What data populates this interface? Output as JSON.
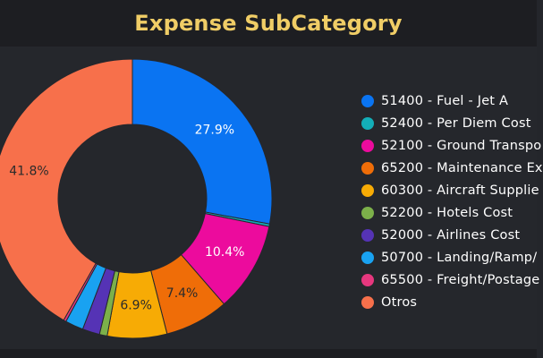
{
  "header": {
    "title": "Expense SubCategory"
  },
  "chart_data": {
    "type": "pie",
    "donut": true,
    "legend_placement": "right",
    "slices": [
      {
        "label": "51400 - Fuel - Jet A",
        "value": 27.9,
        "value_label": "27.9%",
        "color": "#0a74f2"
      },
      {
        "label": "52400 - Per Diem Cost",
        "value": 0.3,
        "value_label": "",
        "color": "#13aeb8"
      },
      {
        "label": "52100 - Ground Transpo",
        "value": 10.4,
        "value_label": "10.4%",
        "color": "#ec0b9d"
      },
      {
        "label": "65200 - Maintenance Ex",
        "value": 7.4,
        "value_label": "7.4%",
        "color": "#ef6d08"
      },
      {
        "label": "60300 - Aircraft Supplie",
        "value": 6.9,
        "value_label": "6.9%",
        "color": "#f7ab05"
      },
      {
        "label": "52200 - Hotels Cost",
        "value": 0.9,
        "value_label": "",
        "color": "#7cb04a"
      },
      {
        "label": "52000 - Airlines Cost",
        "value": 2.0,
        "value_label": "",
        "color": "#5533b5"
      },
      {
        "label": "50700 - Landing/Ramp/",
        "value": 2.1,
        "value_label": "",
        "color": "#19a2f1"
      },
      {
        "label": "65500 - Freight/Postage",
        "value": 0.3,
        "value_label": "",
        "color": "#e6377e"
      },
      {
        "label": "Otros",
        "value": 41.8,
        "value_label": "41.8%",
        "color": "#f7704b"
      }
    ]
  }
}
